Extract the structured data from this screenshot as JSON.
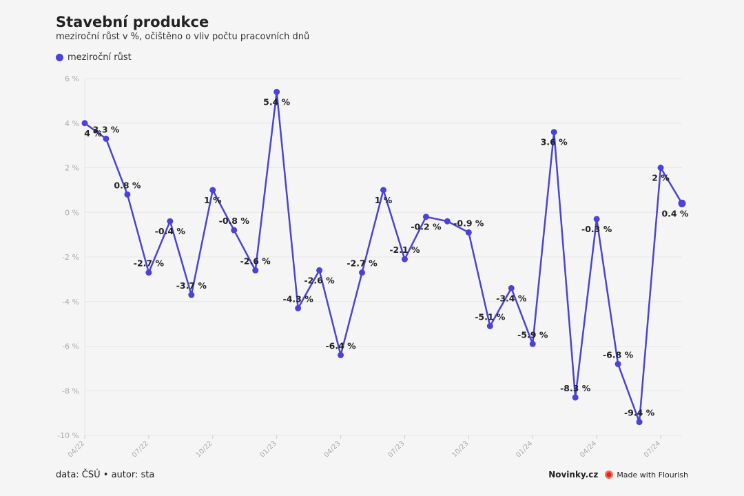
{
  "header": {
    "title": "Stavební produkce",
    "subtitle": "meziroční růst v %, očištěno o vliv počtu pracovních dnů",
    "legend_label": "meziroční růst"
  },
  "footer": {
    "source": "data: ČSÚ • autor: sta",
    "brand": "Novinky.cz",
    "flourish": "Made with Flourish"
  },
  "colors": {
    "series": "#4a42d9",
    "grid": "#e6e6e6",
    "axis_text": "#aaaaaa",
    "label": "#222222"
  },
  "chart_data": {
    "type": "line",
    "title": "Stavební produkce",
    "subtitle": "meziroční růst v %, očištěno o vliv počtu pracovních dnů",
    "ylim": [
      -10,
      6
    ],
    "yticks": [
      6,
      4,
      2,
      0,
      -2,
      -4,
      -6,
      -8,
      -10
    ],
    "ytick_labels": [
      "6 %",
      "4 %",
      "2 %",
      "0 %",
      "-2 %",
      "-4 %",
      "-6 %",
      "-8 %",
      "-10 %"
    ],
    "xticks": [
      {
        "x": "2022-04",
        "label": "04/22"
      },
      {
        "x": "2022-07",
        "label": "07/22"
      },
      {
        "x": "2022-10",
        "label": "10/22"
      },
      {
        "x": "2023-01",
        "label": "01/23"
      },
      {
        "x": "2023-04",
        "label": "04/23"
      },
      {
        "x": "2023-07",
        "label": "07/23"
      },
      {
        "x": "2023-10",
        "label": "10/23"
      },
      {
        "x": "2024-01",
        "label": "01/24"
      },
      {
        "x": "2024-04",
        "label": "04/24"
      },
      {
        "x": "2024-07",
        "label": "07/24"
      }
    ],
    "grid": true,
    "legend_position": "top-left",
    "series": [
      {
        "name": "meziroční růst",
        "points": [
          {
            "x": "2022-04",
            "y": 4.0,
            "label": "4 %"
          },
          {
            "x": "2022-05",
            "y": 3.3,
            "label": "3.3 %"
          },
          {
            "x": "2022-06",
            "y": 0.8,
            "label": "0.8 %"
          },
          {
            "x": "2022-07",
            "y": -2.7,
            "label": "-2.7 %"
          },
          {
            "x": "2022-08",
            "y": -0.4,
            "label": "-0.4 %"
          },
          {
            "x": "2022-09",
            "y": -3.7,
            "label": "-3.7 %"
          },
          {
            "x": "2022-10",
            "y": 1.0,
            "label": "1 %"
          },
          {
            "x": "2022-11",
            "y": -0.8,
            "label": "-0.8 %"
          },
          {
            "x": "2022-12",
            "y": -2.6,
            "label": "-2.6 %"
          },
          {
            "x": "2023-01",
            "y": 5.4,
            "label": "5.4 %"
          },
          {
            "x": "2023-02",
            "y": -4.3,
            "label": "-4.3 %"
          },
          {
            "x": "2023-03",
            "y": -2.6,
            "label": "-2.6 %"
          },
          {
            "x": "2023-04",
            "y": -6.4,
            "label": "-6.4 %"
          },
          {
            "x": "2023-05",
            "y": -2.7,
            "label": "-2.7 %"
          },
          {
            "x": "2023-06",
            "y": 1.0,
            "label": "1 %"
          },
          {
            "x": "2023-07",
            "y": -2.1,
            "label": "-2.1 %"
          },
          {
            "x": "2023-08",
            "y": -0.2,
            "label": "-0.2 %"
          },
          {
            "x": "2023-09",
            "y": -0.4,
            "label": ""
          },
          {
            "x": "2023-10",
            "y": -0.9,
            "label": "-0.9 %"
          },
          {
            "x": "2023-11",
            "y": -5.1,
            "label": "-5.1 %"
          },
          {
            "x": "2023-12",
            "y": -3.4,
            "label": "-3.4 %"
          },
          {
            "x": "2024-01",
            "y": -5.9,
            "label": "-5.9 %"
          },
          {
            "x": "2024-02",
            "y": 3.6,
            "label": "3.6 %"
          },
          {
            "x": "2024-03",
            "y": -8.3,
            "label": "-8.3 %"
          },
          {
            "x": "2024-04",
            "y": -0.3,
            "label": "-0.3 %"
          },
          {
            "x": "2024-05",
            "y": -6.8,
            "label": "-6.8 %"
          },
          {
            "x": "2024-06",
            "y": -9.4,
            "label": "-9.4 %"
          },
          {
            "x": "2024-07",
            "y": 2.0,
            "label": "2 %"
          },
          {
            "x": "2024-08",
            "y": 0.4,
            "label": "0.4 %"
          }
        ]
      }
    ]
  }
}
